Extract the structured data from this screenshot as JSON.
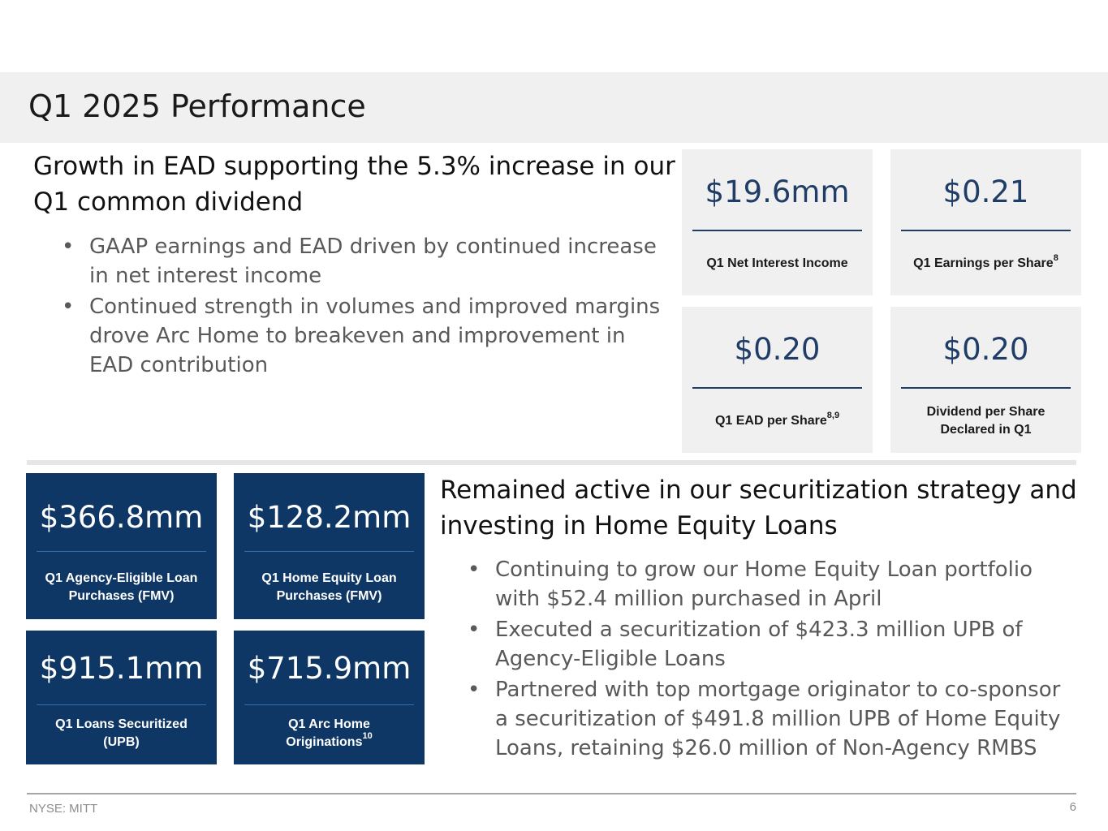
{
  "header": {
    "title": "Q1 2025 Performance"
  },
  "top_section": {
    "headline": "Growth in EAD supporting the 5.3% increase in our Q1 common dividend",
    "bullets": [
      "GAAP earnings and EAD driven by continued increase in net interest income",
      "Continued strength in volumes and improved margins drove Arc Home to breakeven and improvement in EAD contribution"
    ]
  },
  "top_stats": [
    {
      "value": "$19.6mm",
      "label": "Q1 Net Interest Income",
      "sup": ""
    },
    {
      "value": "$0.21",
      "label": "Q1 Earnings per Share",
      "sup": "8"
    },
    {
      "value": "$0.20",
      "label": "Q1 EAD per Share",
      "sup": "8,9"
    },
    {
      "value": "$0.20",
      "label": "Dividend per Share Declared in Q1",
      "sup": ""
    }
  ],
  "bottom_stats": [
    {
      "value": "$366.8mm",
      "label": "Q1 Agency-Eligible Loan Purchases (FMV)",
      "sup": ""
    },
    {
      "value": "$128.2mm",
      "label": "Q1 Home Equity Loan Purchases (FMV)",
      "sup": ""
    },
    {
      "value": "$915.1mm",
      "label": "Q1 Loans Securitized (UPB)",
      "sup": ""
    },
    {
      "value": "$715.9mm",
      "label": "Q1 Arc Home Originations",
      "sup": "10"
    }
  ],
  "bottom_section": {
    "headline": "Remained active in our securitization strategy and investing in Home Equity Loans",
    "bullets": [
      "Continuing to grow our Home Equity Loan portfolio with $52.4 million purchased in April",
      "Executed a securitization of $423.3 million UPB of Agency-Eligible Loans",
      "Partnered with top mortgage originator to co-sponsor a securitization of $491.8 million UPB of Home Equity Loans, retaining $26.0 million of Non-Agency RMBS"
    ]
  },
  "footer": {
    "ticker": "NYSE: MITT",
    "page_number": "6"
  },
  "colors": {
    "navy": "#0f3766",
    "accent_text": "#1f3d66",
    "card_gray": "#f0f0f0"
  }
}
